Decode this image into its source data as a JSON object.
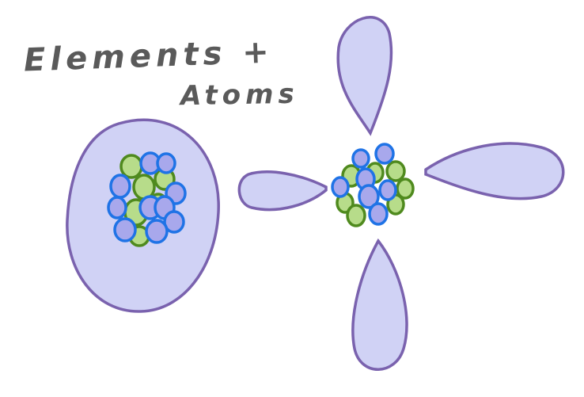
{
  "diagram": {
    "title_line1": "Elements +",
    "title_line2": "Atoms",
    "colors": {
      "orbital_fill": "#d0d2f5",
      "orbital_outline": "#7a62ae",
      "proton_fill": "#a8a8ec",
      "proton_outline": "#1f73e6",
      "neutron_fill": "#b7dc8a",
      "neutron_outline": "#4f8a1e",
      "title_color": "#5a5a5a"
    },
    "atoms": [
      {
        "kind": "s-orbital",
        "lobes": 1
      },
      {
        "kind": "p-orbital",
        "lobes": 4
      }
    ]
  }
}
